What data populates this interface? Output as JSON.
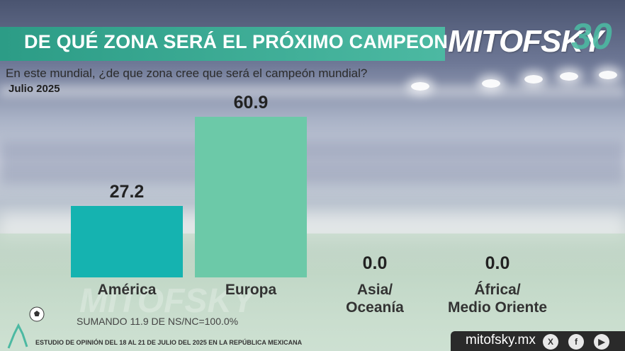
{
  "header": {
    "title": "DE QUÉ ZONA SERÁ EL PRÓXIMO CAMPEON",
    "logo": "MITOFSKY",
    "logo_number": "30"
  },
  "question": "En este mundial, ¿de que zona cree que será el campeón mundial?",
  "date": "Julio 2025",
  "chart_data": {
    "type": "bar",
    "title": "DE QUÉ ZONA SERÁ EL PRÓXIMO CAMPEON",
    "categories": [
      "América",
      "Europa",
      "Asia/ Oceanía",
      "África/ Medio Oriente"
    ],
    "category_lines": [
      [
        "América"
      ],
      [
        "Europa"
      ],
      [
        "Asia/",
        "Oceanía"
      ],
      [
        "África/",
        "Medio Oriente"
      ]
    ],
    "values": [
      27.2,
      60.9,
      0.0,
      0.0
    ],
    "value_labels": [
      "27.2",
      "60.9",
      "0.0",
      "0.0"
    ],
    "colors": [
      "#15b3b0",
      "#6cc9a8",
      "#6cc9a8",
      "#6cc9a8"
    ],
    "xlabel": "",
    "ylabel": "",
    "ylim": [
      0,
      60.9
    ]
  },
  "note": "SUMANDO 11.9 DE NS/NC=100.0%",
  "footer": {
    "study": "ESTUDIO DE OPINIÓN DEL 18 AL 21 DE JULIO DEL 2025 EN LA REPÚBLICA MEXICANA",
    "brand": "mitofsky.mx",
    "social": [
      "x-icon",
      "facebook-icon",
      "youtube-icon"
    ]
  }
}
